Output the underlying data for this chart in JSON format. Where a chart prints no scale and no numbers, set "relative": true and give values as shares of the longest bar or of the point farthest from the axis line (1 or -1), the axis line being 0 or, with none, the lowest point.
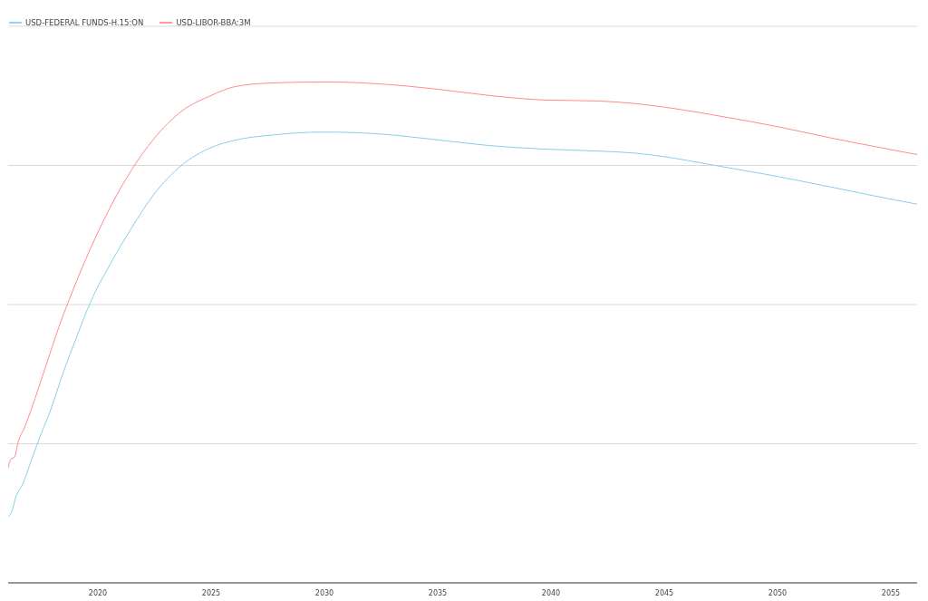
{
  "chart_data": {
    "type": "line",
    "relative": true,
    "grid": "y",
    "legend": "top left",
    "marker": "none",
    "line_style": "solid",
    "xlim": [
      2016.04,
      2056.16
    ],
    "xticks": [
      2020,
      2025,
      2030,
      2035,
      2040,
      2045,
      2050,
      2055
    ],
    "series": [
      {
        "name": "USD-FEDERAL FUNDS-H.15:ON",
        "color": "#87ceeb",
        "x": [
          2016.04,
          2016.16,
          2016.4,
          2016.68,
          2017.08,
          2017.48,
          2017.88,
          2018.48,
          2019.08,
          2019.68,
          2020.48,
          2021.48,
          2022.48,
          2023.68,
          2025,
          2026.08,
          2027.68,
          2030,
          2032.48,
          2034.88,
          2037.28,
          2039.68,
          2042.08,
          2043.68,
          2045.28,
          2047.28,
          2049.68,
          2052.48,
          2054.88,
          2056.16
        ],
        "values": [
          0.133,
          0.138,
          0.174,
          0.197,
          0.247,
          0.296,
          0.341,
          0.421,
          0.493,
          0.561,
          0.631,
          0.708,
          0.776,
          0.833,
          0.869,
          0.884,
          0.894,
          0.9,
          0.896,
          0.885,
          0.873,
          0.866,
          0.862,
          0.858,
          0.849,
          0.833,
          0.814,
          0.789,
          0.767,
          0.756
        ]
      },
      {
        "name": "USD-LIBOR-BBA:3M",
        "color": "#ff8a8a",
        "x": [
          2016.04,
          2016.16,
          2016.32,
          2016.48,
          2016.76,
          2017.08,
          2017.68,
          2018.28,
          2018.88,
          2019.68,
          2020.48,
          2021.48,
          2022.48,
          2023.68,
          2025,
          2026.08,
          2027.68,
          2030,
          2032.48,
          2034.88,
          2037.28,
          2039.68,
          2042.08,
          2043.68,
          2045.28,
          2047.68,
          2050.08,
          2052.48,
          2054.88,
          2056.16
        ],
        "values": [
          0.229,
          0.247,
          0.251,
          0.281,
          0.31,
          0.349,
          0.43,
          0.511,
          0.582,
          0.668,
          0.744,
          0.824,
          0.887,
          0.941,
          0.973,
          0.991,
          0.998,
          1,
          0.996,
          0.986,
          0.973,
          0.964,
          0.962,
          0.957,
          0.948,
          0.93,
          0.91,
          0.887,
          0.866,
          0.855
        ]
      }
    ]
  }
}
